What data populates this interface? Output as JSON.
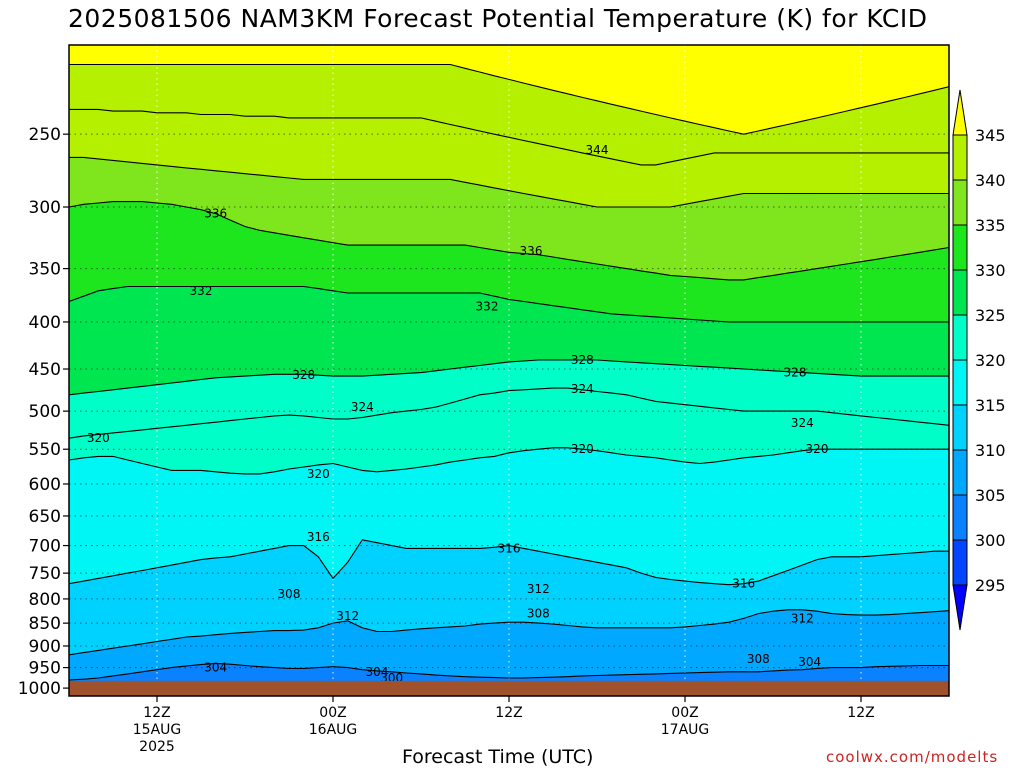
{
  "title": "2025081506 NAM3KM Forecast Potential Temperature (K) for KCID",
  "xlabel": "Forecast Time (UTC)",
  "credit": "coolwx.com/modelts",
  "chart_data": {
    "type": "contour",
    "variable": "Potential Temperature (K)",
    "y_axis": {
      "unit": "hPa",
      "scale": "log",
      "range": [
        1020,
        200
      ],
      "ticks": [
        250,
        300,
        350,
        400,
        450,
        500,
        550,
        600,
        650,
        700,
        750,
        800,
        850,
        900,
        950,
        1000
      ]
    },
    "x_axis": {
      "range_hours": [
        0,
        60
      ],
      "ticks": [
        {
          "hour": 6,
          "lines": [
            "12Z",
            "15AUG",
            "2025"
          ]
        },
        {
          "hour": 18,
          "lines": [
            "00Z",
            "16AUG"
          ]
        },
        {
          "hour": 30,
          "lines": [
            "12Z"
          ]
        },
        {
          "hour": 42,
          "lines": [
            "00Z",
            "17AUG"
          ]
        },
        {
          "hour": 54,
          "lines": [
            "12Z"
          ]
        }
      ]
    },
    "grid": true,
    "ground_below_hPa": 982,
    "contour_levels": [
      296,
      300,
      304,
      308,
      312,
      316,
      320,
      324,
      328,
      332,
      336,
      340,
      344,
      348
    ],
    "isentropes": [
      {
        "theta": 304,
        "p": [
          985,
          985,
          985,
          985,
          985,
          985,
          985,
          985,
          985,
          985,
          985,
          985,
          985,
          985,
          985,
          985,
          985,
          985,
          985,
          985,
          985,
          985,
          985,
          985,
          985,
          985,
          985,
          985,
          985,
          985,
          985,
          985,
          985,
          985,
          985,
          985,
          985,
          985,
          985,
          985,
          985,
          985,
          985,
          985,
          985,
          985,
          985,
          985,
          985,
          985,
          985,
          985,
          985,
          985,
          985,
          985,
          985,
          985,
          985,
          985,
          985
        ]
      },
      {
        "theta": 308,
        "p": [
          980,
          978,
          975,
          970,
          965,
          960,
          955,
          950,
          946,
          943,
          940,
          942,
          945,
          948,
          950,
          952,
          952,
          950,
          948,
          950,
          955,
          958,
          960,
          963,
          965,
          968,
          970,
          972,
          973,
          974,
          975,
          975,
          974,
          973,
          972,
          970,
          969,
          968,
          967,
          966,
          965,
          964,
          963,
          962,
          961,
          960,
          960,
          960,
          958,
          956,
          955,
          952,
          950,
          950,
          950,
          948,
          947,
          946,
          945,
          945,
          945
        ]
      },
      {
        "theta": 312,
        "p": [
          920,
          915,
          910,
          905,
          900,
          895,
          890,
          885,
          880,
          878,
          875,
          872,
          870,
          868,
          866,
          866,
          865,
          860,
          850,
          845,
          860,
          868,
          868,
          865,
          862,
          860,
          858,
          856,
          852,
          850,
          848,
          848,
          850,
          852,
          855,
          858,
          860,
          860,
          860,
          860,
          860,
          860,
          858,
          855,
          852,
          848,
          840,
          830,
          825,
          822,
          822,
          825,
          830,
          832,
          833,
          833,
          832,
          830,
          828,
          826,
          824
        ]
      },
      {
        "theta": 316,
        "p": [
          770,
          765,
          760,
          755,
          750,
          745,
          740,
          735,
          730,
          725,
          722,
          720,
          715,
          710,
          705,
          700,
          700,
          720,
          760,
          730,
          690,
          695,
          700,
          705,
          705,
          705,
          705,
          705,
          705,
          703,
          700,
          705,
          710,
          715,
          720,
          725,
          730,
          735,
          740,
          750,
          758,
          762,
          765,
          768,
          770,
          772,
          770,
          765,
          755,
          745,
          735,
          725,
          720,
          720,
          720,
          718,
          716,
          714,
          712,
          710,
          710
        ]
      },
      {
        "theta": 320,
        "p": [
          565,
          562,
          560,
          560,
          565,
          570,
          575,
          580,
          580,
          580,
          582,
          584,
          585,
          585,
          582,
          578,
          575,
          572,
          570,
          575,
          580,
          582,
          580,
          578,
          575,
          572,
          568,
          565,
          562,
          560,
          555,
          552,
          550,
          548,
          548,
          550,
          552,
          555,
          558,
          560,
          562,
          565,
          568,
          570,
          568,
          565,
          562,
          560,
          558,
          555,
          552,
          550,
          550,
          550,
          550,
          550,
          550,
          550,
          550,
          550,
          550
        ]
      },
      {
        "theta": 324,
        "p": [
          535,
          532,
          530,
          528,
          526,
          524,
          522,
          520,
          518,
          516,
          514,
          512,
          510,
          508,
          506,
          505,
          506,
          508,
          510,
          510,
          508,
          505,
          502,
          500,
          498,
          495,
          490,
          485,
          480,
          478,
          475,
          474,
          473,
          472,
          472,
          474,
          476,
          478,
          480,
          484,
          488,
          490,
          492,
          494,
          496,
          498,
          500,
          500,
          500,
          500,
          500,
          500,
          502,
          504,
          506,
          508,
          510,
          512,
          514,
          516,
          518
        ]
      },
      {
        "theta": 328,
        "p": [
          480,
          478,
          476,
          474,
          472,
          470,
          468,
          466,
          464,
          462,
          460,
          459,
          458,
          457,
          456,
          456,
          456,
          457,
          458,
          458,
          458,
          457,
          456,
          455,
          454,
          452,
          450,
          448,
          446,
          444,
          442,
          441,
          440,
          440,
          440,
          440,
          440,
          441,
          442,
          443,
          444,
          445,
          446,
          447,
          448,
          449,
          450,
          451,
          452,
          453,
          454,
          455,
          456,
          457,
          458,
          458,
          458,
          458,
          458,
          458,
          458
        ]
      },
      {
        "theta": 332,
        "p": [
          380,
          375,
          370,
          368,
          366,
          366,
          366,
          366,
          366,
          366,
          366,
          366,
          366,
          366,
          366,
          366,
          366,
          368,
          370,
          372,
          372,
          372,
          372,
          372,
          372,
          372,
          372,
          372,
          372,
          375,
          378,
          380,
          382,
          384,
          386,
          388,
          390,
          392,
          393,
          394,
          395,
          396,
          397,
          398,
          399,
          400,
          400,
          400,
          400,
          400,
          400,
          400,
          400,
          400,
          400,
          400,
          400,
          400,
          400,
          400,
          400
        ]
      },
      {
        "theta": 336,
        "p": [
          300,
          298,
          297,
          296,
          296,
          296,
          297,
          298,
          300,
          302,
          305,
          310,
          315,
          318,
          320,
          322,
          324,
          326,
          328,
          330,
          330,
          330,
          330,
          330,
          330,
          330,
          330,
          330,
          332,
          334,
          336,
          337,
          338,
          340,
          342,
          344,
          346,
          348,
          350,
          352,
          354,
          356,
          357,
          358,
          359,
          360,
          360,
          358,
          356,
          354,
          352,
          350,
          348,
          346,
          344,
          342,
          340,
          338,
          336,
          334,
          332
        ]
      },
      {
        "theta": 340,
        "p": [
          265,
          265,
          266,
          267,
          268,
          269,
          270,
          271,
          272,
          273,
          274,
          275,
          276,
          277,
          278,
          279,
          280,
          280,
          280,
          280,
          280,
          280,
          280,
          280,
          280,
          280,
          280,
          282,
          284,
          286,
          288,
          290,
          292,
          294,
          296,
          298,
          300,
          300,
          300,
          300,
          300,
          300,
          298,
          296,
          294,
          292,
          290,
          290,
          290,
          290,
          290,
          290,
          290,
          290,
          290,
          290,
          290,
          290,
          290,
          290,
          290
        ]
      },
      {
        "theta": 344,
        "p": [
          235,
          235,
          235,
          236,
          236,
          236,
          237,
          237,
          237,
          238,
          238,
          238,
          239,
          239,
          239,
          240,
          240,
          240,
          240,
          240,
          240,
          240,
          240,
          240,
          240,
          242,
          244,
          246,
          248,
          250,
          252,
          254,
          256,
          258,
          260,
          262,
          264,
          266,
          268,
          270,
          270,
          268,
          266,
          264,
          262,
          262,
          262,
          262,
          262,
          262,
          262,
          262,
          262,
          262,
          262,
          262,
          262,
          262,
          262,
          262,
          262
        ]
      },
      {
        "theta": 348,
        "p": [
          210,
          210,
          210,
          210,
          210,
          210,
          210,
          210,
          210,
          210,
          210,
          210,
          210,
          210,
          210,
          210,
          210,
          210,
          210,
          210,
          210,
          210,
          210,
          210,
          210,
          210,
          210,
          212,
          214,
          216,
          218,
          220,
          222,
          224,
          226,
          228,
          230,
          232,
          234,
          236,
          238,
          240,
          242,
          244,
          246,
          248,
          250,
          248,
          246,
          244,
          242,
          240,
          238,
          236,
          234,
          232,
          230,
          228,
          226,
          224,
          222
        ]
      }
    ],
    "contour_labels": [
      {
        "text": "344",
        "hour": 36,
        "p": 260
      },
      {
        "text": "336",
        "hour": 10,
        "p": 305
      },
      {
        "text": "336",
        "hour": 31.5,
        "p": 335
      },
      {
        "text": "332",
        "hour": 9,
        "p": 370
      },
      {
        "text": "332",
        "hour": 28.5,
        "p": 385
      },
      {
        "text": "328",
        "hour": 16,
        "p": 457
      },
      {
        "text": "328",
        "hour": 35,
        "p": 440
      },
      {
        "text": "328",
        "hour": 49.5,
        "p": 454
      },
      {
        "text": "324",
        "hour": 20,
        "p": 495
      },
      {
        "text": "324",
        "hour": 35,
        "p": 473
      },
      {
        "text": "324",
        "hour": 50,
        "p": 515
      },
      {
        "text": "320",
        "hour": 2,
        "p": 535
      },
      {
        "text": "320",
        "hour": 17,
        "p": 585
      },
      {
        "text": "320",
        "hour": 35,
        "p": 550
      },
      {
        "text": "320",
        "hour": 51,
        "p": 550
      },
      {
        "text": "316",
        "hour": 17,
        "p": 685
      },
      {
        "text": "316",
        "hour": 30,
        "p": 705
      },
      {
        "text": "316",
        "hour": 46,
        "p": 770
      },
      {
        "text": "312",
        "hour": 32,
        "p": 780
      },
      {
        "text": "312",
        "hour": 19,
        "p": 835
      },
      {
        "text": "312",
        "hour": 50,
        "p": 840
      },
      {
        "text": "308",
        "hour": 15,
        "p": 790
      },
      {
        "text": "308",
        "hour": 32,
        "p": 830
      },
      {
        "text": "308",
        "hour": 47,
        "p": 930
      },
      {
        "text": "304",
        "hour": 10,
        "p": 950
      },
      {
        "text": "304",
        "hour": 21,
        "p": 960
      },
      {
        "text": "304",
        "hour": 50.5,
        "p": 937
      },
      {
        "text": "300",
        "hour": 22,
        "p": 975
      }
    ],
    "colorbar": {
      "levels": [
        295,
        300,
        305,
        310,
        315,
        320,
        325,
        330,
        335,
        340,
        345
      ],
      "colors": [
        "#0000ff",
        "#0046ff",
        "#0a82ff",
        "#00a8ff",
        "#00d2ff",
        "#00f5f5",
        "#00ffc8",
        "#00e650",
        "#1ee61e",
        "#7fe61e",
        "#b4f000",
        "#ffff00"
      ]
    },
    "ground_color": "#a0522d"
  }
}
